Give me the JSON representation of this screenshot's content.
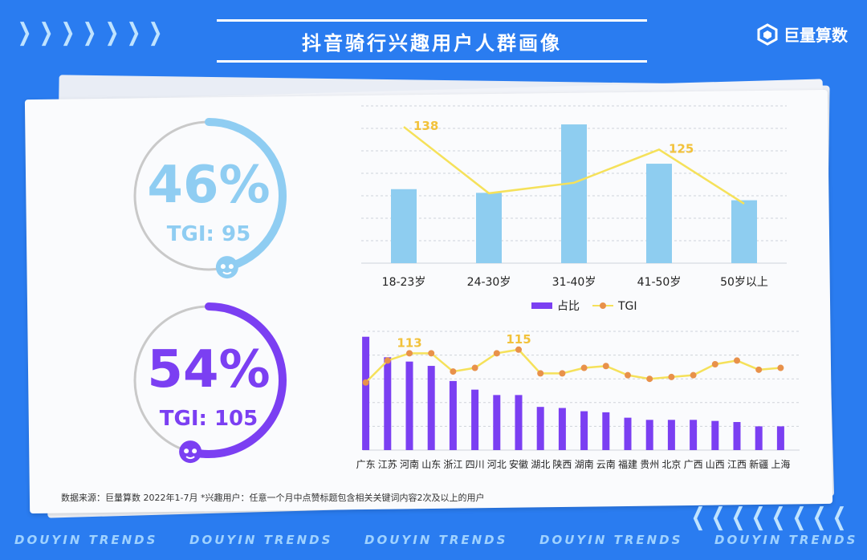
{
  "header": {
    "title": "抖音骑行兴趣用户人群画像",
    "brand": "巨量算数"
  },
  "gender": [
    {
      "percent": "46%",
      "tgi": "TGI: 95",
      "share": 0.46,
      "color": "#8fcdf2",
      "icon": "male-user-icon"
    },
    {
      "percent": "54%",
      "tgi": "TGI: 105",
      "share": 0.54,
      "color": "#7b3ff2",
      "icon": "female-user-icon"
    }
  ],
  "legend": {
    "bar": "占比",
    "line": "TGI"
  },
  "footer": {
    "note": "数据来源：巨量算数 2022年1-7月 *兴趣用户：任意一个月中点赞标题包含相关关键词内容2次及以上的用户"
  },
  "trends_text": "DOUYIN TRENDS",
  "chart_data": [
    {
      "type": "bar",
      "categories": [
        "18-23岁",
        "24-30岁",
        "31-40岁",
        "41-50岁",
        "50岁以上"
      ],
      "series": [
        {
          "name": "占比",
          "type": "bar",
          "values": [
            16,
            15.2,
            30,
            21.5,
            13.6
          ]
        },
        {
          "name": "TGI",
          "type": "line",
          "values": [
            138,
            100,
            106,
            125,
            94
          ],
          "labels": [
            "138",
            "",
            "",
            "125",
            ""
          ]
        }
      ],
      "colors": {
        "bar": "#8ecdf0",
        "line": "#f5e15a",
        "label": "#f2c23b"
      },
      "grid": true
    },
    {
      "type": "bar",
      "categories": [
        "广东",
        "江苏",
        "河南",
        "山东",
        "浙江",
        "四川",
        "河北",
        "安徽",
        "湖北",
        "陕西",
        "湖南",
        "云南",
        "福建",
        "贵州",
        "北京",
        "广西",
        "山西",
        "江西",
        "新疆",
        "上海"
      ],
      "series": [
        {
          "name": "占比",
          "type": "bar",
          "values": [
            10.5,
            8.6,
            8.2,
            7.8,
            6.4,
            5.6,
            5.1,
            5.1,
            4.0,
            3.9,
            3.6,
            3.5,
            3.0,
            2.8,
            2.8,
            2.8,
            2.7,
            2.6,
            2.2,
            2.2
          ]
        },
        {
          "name": "TGI",
          "type": "line",
          "values": [
            97,
            109,
            113,
            113,
            103,
            105,
            113,
            115,
            102,
            102,
            105,
            106,
            101,
            99,
            100,
            101,
            107,
            109,
            104,
            105
          ],
          "labels": [
            "",
            "",
            "113",
            "",
            "",
            "",
            "",
            "115",
            "",
            "",
            "",
            "",
            "",
            "",
            "",
            "",
            "",
            "",
            "",
            ""
          ]
        }
      ],
      "colors": {
        "bar": "#7b3ff2",
        "line": "#f5e15a",
        "marker": "#e8914a",
        "label": "#f2c23b"
      },
      "grid": true
    }
  ]
}
